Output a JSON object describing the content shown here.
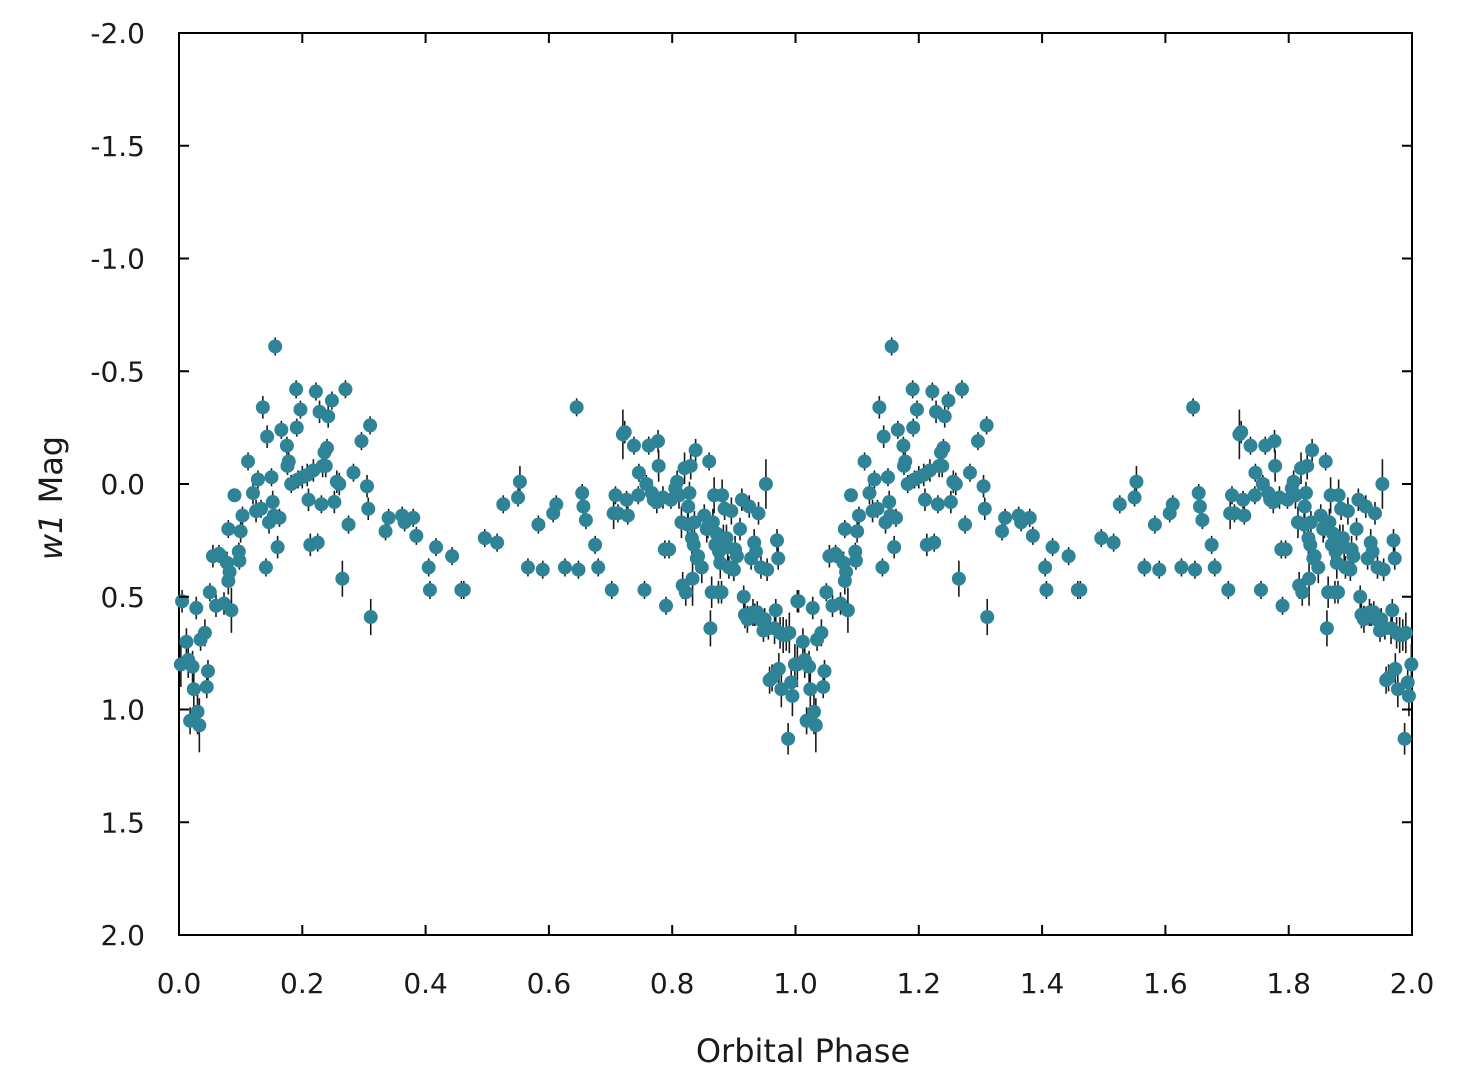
{
  "chart_data": {
    "type": "scatter",
    "title": "",
    "xlabel": "Orbital Phase",
    "ylabel_italic": "w1",
    "ylabel_rest": " Mag",
    "xlim": [
      0.0,
      2.0
    ],
    "ylim": [
      2.0,
      -2.0
    ],
    "y_inverted": true,
    "grid": false,
    "legend": "none",
    "x_ticks": [
      0.0,
      0.2,
      0.4,
      0.6,
      0.8,
      1.0,
      1.2,
      1.4,
      1.6,
      1.8,
      2.0
    ],
    "x_tick_labels": [
      "0.0",
      "0.2",
      "0.4",
      "0.6",
      "0.8",
      "1.0",
      "1.2",
      "1.4",
      "1.6",
      "1.8",
      "2.0"
    ],
    "y_ticks": [
      -2.0,
      -1.5,
      -1.0,
      -0.5,
      0.0,
      0.5,
      1.0,
      1.5,
      2.0
    ],
    "y_tick_labels": [
      "-2.0",
      "-1.5",
      "-1.0",
      "-0.5",
      "0.0",
      "0.5",
      "1.0",
      "1.5",
      "2.0"
    ],
    "marker_color": "#2e8496",
    "errorbar_color": "#1a1a1a",
    "series": [
      {
        "phase_fold_period": 1.0,
        "points": [
          [
            0.003,
            0.8,
            0.1
          ],
          [
            0.005,
            0.52,
            0.05
          ],
          [
            0.012,
            0.7,
            0.06
          ],
          [
            0.015,
            0.78,
            0.08
          ],
          [
            0.018,
            1.05,
            0.06
          ],
          [
            0.022,
            0.81,
            0.07
          ],
          [
            0.024,
            0.91,
            0.08
          ],
          [
            0.028,
            0.55,
            0.05
          ],
          [
            0.03,
            1.01,
            0.1
          ],
          [
            0.033,
            1.07,
            0.12
          ],
          [
            0.035,
            0.69,
            0.05
          ],
          [
            0.042,
            0.66,
            0.06
          ],
          [
            0.045,
            0.9,
            0.05
          ],
          [
            0.047,
            0.83,
            0.05
          ],
          [
            0.05,
            0.48,
            0.04
          ],
          [
            0.055,
            0.32,
            0.05
          ],
          [
            0.06,
            0.54,
            0.05
          ],
          [
            0.065,
            0.31,
            0.04
          ],
          [
            0.068,
            0.32,
            0.04
          ],
          [
            0.073,
            0.53,
            0.05
          ],
          [
            0.078,
            0.35,
            0.05
          ],
          [
            0.08,
            0.43,
            0.06
          ],
          [
            0.08,
            0.2,
            0.04
          ],
          [
            0.082,
            0.39,
            0.06
          ],
          [
            0.085,
            0.56,
            0.1
          ],
          [
            0.09,
            0.05,
            0.03
          ],
          [
            0.097,
            0.3,
            0.04
          ],
          [
            0.098,
            0.34,
            0.04
          ],
          [
            0.1,
            0.21,
            0.05
          ],
          [
            0.103,
            0.14,
            0.04
          ],
          [
            0.112,
            -0.1,
            0.04
          ],
          [
            0.12,
            0.04,
            0.05
          ],
          [
            0.125,
            0.12,
            0.05
          ],
          [
            0.128,
            -0.02,
            0.04
          ],
          [
            0.133,
            0.11,
            0.04
          ],
          [
            0.136,
            -0.34,
            0.05
          ],
          [
            0.141,
            0.37,
            0.04
          ],
          [
            0.143,
            -0.21,
            0.05
          ],
          [
            0.146,
            0.17,
            0.05
          ],
          [
            0.15,
            -0.03,
            0.04
          ],
          [
            0.152,
            0.08,
            0.05
          ],
          [
            0.154,
            0.14,
            0.05
          ],
          [
            0.156,
            -0.61,
            0.04
          ],
          [
            0.16,
            0.28,
            0.05
          ],
          [
            0.163,
            0.15,
            0.04
          ],
          [
            0.166,
            -0.24,
            0.04
          ],
          [
            0.175,
            -0.17,
            0.04
          ],
          [
            0.176,
            -0.08,
            0.04
          ],
          [
            0.178,
            -0.1,
            0.04
          ],
          [
            0.182,
            0.0,
            0.04
          ],
          [
            0.19,
            -0.42,
            0.04
          ],
          [
            0.191,
            -0.25,
            0.04
          ],
          [
            0.193,
            -0.02,
            0.04
          ],
          [
            0.197,
            -0.33,
            0.04
          ],
          [
            0.2,
            -0.03,
            0.05
          ],
          [
            0.208,
            -0.04,
            0.05
          ],
          [
            0.21,
            0.07,
            0.05
          ],
          [
            0.213,
            0.27,
            0.05
          ],
          [
            0.218,
            -0.06,
            0.05
          ],
          [
            0.222,
            -0.41,
            0.04
          ],
          [
            0.225,
            0.26,
            0.04
          ],
          [
            0.228,
            -0.32,
            0.05
          ],
          [
            0.231,
            0.09,
            0.04
          ],
          [
            0.233,
            -0.08,
            0.05
          ],
          [
            0.236,
            -0.14,
            0.04
          ],
          [
            0.238,
            -0.08,
            0.05
          ],
          [
            0.24,
            -0.16,
            0.04
          ],
          [
            0.242,
            -0.3,
            0.05
          ],
          [
            0.248,
            -0.37,
            0.04
          ],
          [
            0.252,
            0.08,
            0.05
          ],
          [
            0.256,
            -0.01,
            0.05
          ],
          [
            0.26,
            0.0,
            0.05
          ],
          [
            0.265,
            0.42,
            0.08
          ],
          [
            0.27,
            -0.42,
            0.04
          ],
          [
            0.275,
            0.18,
            0.04
          ],
          [
            0.283,
            -0.05,
            0.04
          ],
          [
            0.296,
            -0.19,
            0.04
          ],
          [
            0.305,
            0.01,
            0.05
          ],
          [
            0.307,
            0.11,
            0.05
          ],
          [
            0.31,
            -0.26,
            0.04
          ],
          [
            0.311,
            0.59,
            0.08
          ],
          [
            0.335,
            0.21,
            0.04
          ],
          [
            0.34,
            0.15,
            0.04
          ],
          [
            0.362,
            0.14,
            0.04
          ],
          [
            0.366,
            0.17,
            0.04
          ],
          [
            0.38,
            0.15,
            0.04
          ],
          [
            0.385,
            0.23,
            0.04
          ],
          [
            0.405,
            0.37,
            0.04
          ],
          [
            0.407,
            0.47,
            0.04
          ],
          [
            0.417,
            0.28,
            0.04
          ],
          [
            0.443,
            0.32,
            0.04
          ],
          [
            0.458,
            0.47,
            0.04
          ],
          [
            0.462,
            0.47,
            0.04
          ],
          [
            0.496,
            0.24,
            0.04
          ],
          [
            0.516,
            0.26,
            0.04
          ],
          [
            0.526,
            0.09,
            0.04
          ],
          [
            0.55,
            0.06,
            0.04
          ],
          [
            0.553,
            -0.01,
            0.07
          ],
          [
            0.566,
            0.37,
            0.04
          ],
          [
            0.583,
            0.18,
            0.04
          ],
          [
            0.59,
            0.38,
            0.04
          ],
          [
            0.607,
            0.13,
            0.04
          ],
          [
            0.612,
            0.09,
            0.04
          ],
          [
            0.626,
            0.37,
            0.04
          ],
          [
            0.645,
            -0.34,
            0.04
          ],
          [
            0.648,
            0.38,
            0.04
          ],
          [
            0.654,
            0.04,
            0.04
          ],
          [
            0.656,
            0.1,
            0.04
          ],
          [
            0.66,
            0.16,
            0.04
          ],
          [
            0.675,
            0.27,
            0.04
          ],
          [
            0.68,
            0.37,
            0.04
          ],
          [
            0.702,
            0.47,
            0.04
          ],
          [
            0.705,
            0.13,
            0.07
          ],
          [
            0.708,
            0.05,
            0.04
          ],
          [
            0.712,
            0.13,
            0.04
          ],
          [
            0.72,
            -0.22,
            0.11
          ],
          [
            0.723,
            -0.23,
            0.05
          ],
          [
            0.726,
            0.07,
            0.04
          ],
          [
            0.728,
            0.14,
            0.04
          ],
          [
            0.738,
            -0.17,
            0.04
          ],
          [
            0.745,
            0.05,
            0.04
          ],
          [
            0.746,
            -0.05,
            0.04
          ],
          [
            0.755,
            0.47,
            0.04
          ],
          [
            0.758,
            0.0,
            0.04
          ],
          [
            0.762,
            -0.17,
            0.04
          ],
          [
            0.767,
            0.04,
            0.06
          ],
          [
            0.77,
            0.07,
            0.04
          ],
          [
            0.775,
            0.08,
            0.05
          ],
          [
            0.777,
            -0.19,
            0.05
          ],
          [
            0.778,
            -0.08,
            0.07
          ],
          [
            0.785,
            0.06,
            0.05
          ],
          [
            0.788,
            0.29,
            0.04
          ],
          [
            0.79,
            0.54,
            0.04
          ],
          [
            0.795,
            0.29,
            0.04
          ],
          [
            0.798,
            0.07,
            0.04
          ],
          [
            0.805,
            0.02,
            0.05
          ],
          [
            0.808,
            -0.01,
            0.05
          ],
          [
            0.811,
            0.05,
            0.06
          ],
          [
            0.815,
            0.17,
            0.07
          ],
          [
            0.817,
            0.45,
            0.06
          ],
          [
            0.82,
            -0.07,
            0.07
          ],
          [
            0.822,
            0.48,
            0.06
          ],
          [
            0.825,
            0.18,
            0.05
          ],
          [
            0.826,
            0.1,
            0.05
          ],
          [
            0.828,
            0.04,
            0.05
          ],
          [
            0.83,
            -0.08,
            0.06
          ],
          [
            0.832,
            0.24,
            0.08
          ],
          [
            0.833,
            0.42,
            0.12
          ],
          [
            0.835,
            0.27,
            0.05
          ],
          [
            0.836,
            0.17,
            0.05
          ],
          [
            0.838,
            -0.15,
            0.05
          ],
          [
            0.84,
            0.33,
            0.06
          ],
          [
            0.842,
            0.32,
            0.06
          ],
          [
            0.848,
            0.37,
            0.07
          ],
          [
            0.852,
            0.14,
            0.05
          ],
          [
            0.856,
            0.2,
            0.06
          ],
          [
            0.858,
            0.19,
            0.05
          ],
          [
            0.86,
            -0.1,
            0.04
          ],
          [
            0.862,
            0.64,
            0.08
          ],
          [
            0.864,
            0.48,
            0.07
          ],
          [
            0.866,
            0.17,
            0.06
          ],
          [
            0.868,
            0.05,
            0.08
          ],
          [
            0.87,
            0.27,
            0.06
          ],
          [
            0.872,
            0.22,
            0.07
          ],
          [
            0.875,
            0.48,
            0.05
          ],
          [
            0.876,
            0.3,
            0.07
          ],
          [
            0.878,
            0.35,
            0.07
          ],
          [
            0.88,
            0.48,
            0.05
          ],
          [
            0.881,
            0.05,
            0.07
          ],
          [
            0.883,
            0.24,
            0.06
          ],
          [
            0.885,
            0.11,
            0.05
          ],
          [
            0.888,
            0.24,
            0.06
          ],
          [
            0.89,
            0.28,
            0.06
          ],
          [
            0.892,
            0.37,
            0.05
          ],
          [
            0.896,
            0.12,
            0.06
          ],
          [
            0.9,
            0.38,
            0.05
          ],
          [
            0.902,
            0.29,
            0.06
          ],
          [
            0.905,
            0.32,
            0.05
          ],
          [
            0.91,
            0.2,
            0.05
          ],
          [
            0.913,
            0.07,
            0.05
          ],
          [
            0.916,
            0.5,
            0.05
          ],
          [
            0.918,
            0.58,
            0.06
          ],
          [
            0.922,
            0.6,
            0.06
          ],
          [
            0.925,
            0.1,
            0.05
          ],
          [
            0.928,
            0.33,
            0.05
          ],
          [
            0.931,
            0.57,
            0.06
          ],
          [
            0.933,
            0.26,
            0.06
          ],
          [
            0.934,
            0.58,
            0.05
          ],
          [
            0.936,
            0.3,
            0.05
          ],
          [
            0.938,
            0.57,
            0.05
          ],
          [
            0.94,
            0.13,
            0.05
          ],
          [
            0.942,
            0.6,
            0.06
          ],
          [
            0.944,
            0.37,
            0.05
          ],
          [
            0.948,
            0.65,
            0.05
          ],
          [
            0.95,
            0.6,
            0.05
          ],
          [
            0.952,
            0.0,
            0.11
          ],
          [
            0.954,
            0.38,
            0.05
          ],
          [
            0.956,
            0.64,
            0.05
          ],
          [
            0.958,
            0.87,
            0.06
          ],
          [
            0.962,
            0.86,
            0.06
          ],
          [
            0.966,
            0.64,
            0.07
          ],
          [
            0.968,
            0.56,
            0.05
          ],
          [
            0.97,
            0.25,
            0.05
          ],
          [
            0.972,
            0.33,
            0.05
          ],
          [
            0.973,
            0.82,
            0.07
          ],
          [
            0.975,
            0.66,
            0.07
          ],
          [
            0.977,
            0.91,
            0.08
          ],
          [
            0.98,
            0.67,
            0.08
          ],
          [
            0.985,
            0.67,
            0.07
          ],
          [
            0.988,
            1.13,
            0.07
          ],
          [
            0.99,
            0.66,
            0.09
          ],
          [
            0.993,
            0.88,
            0.08
          ],
          [
            0.995,
            0.94,
            0.09
          ],
          [
            0.999,
            0.8,
            0.09
          ],
          [
            1.003,
            0.52,
            0.05
          ]
        ]
      }
    ]
  }
}
